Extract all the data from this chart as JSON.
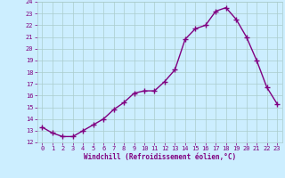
{
  "x": [
    0,
    1,
    2,
    3,
    4,
    5,
    6,
    7,
    8,
    9,
    10,
    11,
    12,
    13,
    14,
    15,
    16,
    17,
    18,
    19,
    20,
    21,
    22,
    23
  ],
  "y": [
    13.3,
    12.8,
    12.5,
    12.5,
    13.0,
    13.5,
    14.0,
    14.8,
    15.4,
    16.2,
    16.4,
    16.4,
    17.2,
    18.2,
    20.8,
    21.7,
    22.0,
    23.2,
    23.5,
    22.5,
    21.0,
    19.0,
    16.7,
    15.3
  ],
  "line_color": "#800080",
  "marker": "+",
  "marker_size": 4,
  "marker_lw": 1.0,
  "bg_color": "#cceeff",
  "grid_color": "#aacccc",
  "xlabel": "Windchill (Refroidissement éolien,°C)",
  "xlabel_color": "#800080",
  "tick_color": "#800080",
  "ylim": [
    12,
    24
  ],
  "xlim_min": -0.5,
  "xlim_max": 23.5,
  "yticks": [
    12,
    13,
    14,
    15,
    16,
    17,
    18,
    19,
    20,
    21,
    22,
    23,
    24
  ],
  "xticks": [
    0,
    1,
    2,
    3,
    4,
    5,
    6,
    7,
    8,
    9,
    10,
    11,
    12,
    13,
    14,
    15,
    16,
    17,
    18,
    19,
    20,
    21,
    22,
    23
  ],
  "line_width": 1.0,
  "tick_fontsize": 5.0,
  "xlabel_fontsize": 5.5,
  "xlabel_fontweight": "bold"
}
